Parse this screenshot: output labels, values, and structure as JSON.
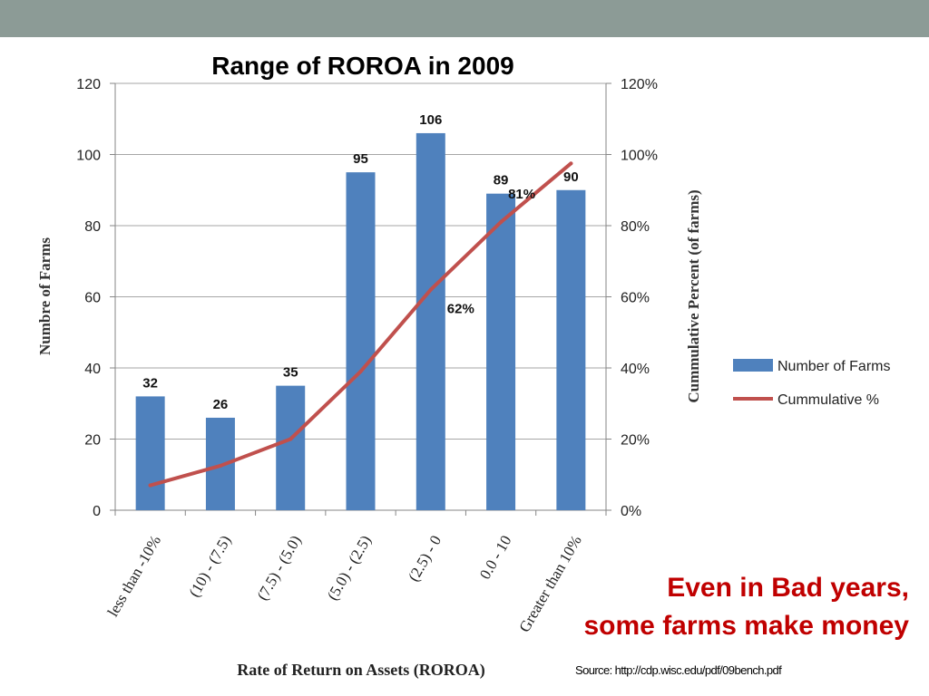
{
  "chart_data": {
    "type": "bar+line",
    "title": "Range of ROROA in 2009",
    "xlabel": "Rate of Return on Assets (ROROA)",
    "ylabel": "Numbre of Farms",
    "y2label": "Cummulative Percent (of farms)",
    "categories": [
      "less than -10%",
      "(10) - (7.5)",
      "(7.5) - (5.0)",
      "(5.0) - (2.5)",
      "(2.5) - 0",
      "0.0 - 10",
      "Greater than 10%"
    ],
    "ylim": [
      0,
      120
    ],
    "yticks": [
      "0",
      "20",
      "40",
      "60",
      "80",
      "100",
      "120"
    ],
    "y2lim": [
      0,
      120
    ],
    "y2ticks": [
      "0%",
      "20%",
      "40%",
      "60%",
      "80%",
      "100%",
      "120%"
    ],
    "series": [
      {
        "name": "Number of Farms",
        "type": "bar",
        "axis": "left",
        "color": "#4f81bd",
        "values": [
          32,
          26,
          35,
          95,
          106,
          89,
          90
        ],
        "labels": [
          "32",
          "26",
          "35",
          "95",
          "106",
          "89",
          "90"
        ]
      },
      {
        "name": "Cummulative %",
        "type": "line",
        "axis": "right",
        "color": "#c0504d",
        "values": [
          7,
          12.5,
          20,
          39,
          62,
          81,
          97.5
        ],
        "labels": [
          "",
          "",
          "",
          "",
          "62%",
          "81%",
          ""
        ]
      }
    ],
    "legend": "right"
  },
  "annotation": {
    "line1": "Even in Bad years,",
    "line2": "some farms make money"
  },
  "source": "Source: http://cdp.wisc.edu/pdf/09bench.pdf"
}
